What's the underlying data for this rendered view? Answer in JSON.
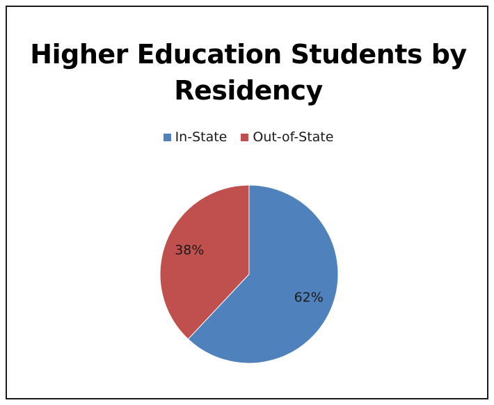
{
  "chart_data": {
    "type": "pie",
    "title": "Higher Education Students by Residency",
    "categories": [
      "In-State",
      "Out-of-State"
    ],
    "values": [
      62,
      38
    ],
    "data_labels": [
      "62%",
      "38%"
    ],
    "colors": [
      "#4f81bd",
      "#c0504d"
    ],
    "legend_position": "top"
  }
}
